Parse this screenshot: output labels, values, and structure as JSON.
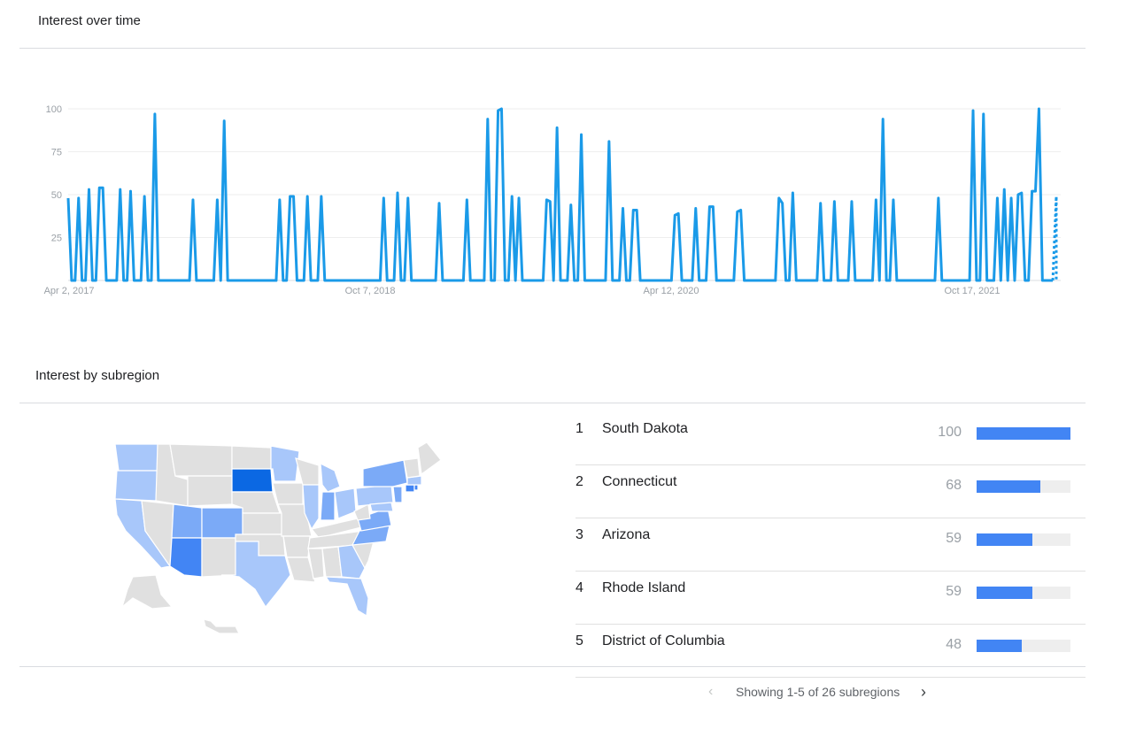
{
  "interest_over_time": {
    "title": "Interest over time"
  },
  "chart_data": {
    "type": "line",
    "title": "",
    "xlabel": "",
    "ylabel": "",
    "yticks": [
      25,
      50,
      75,
      100
    ],
    "xtick_labels": [
      "Apr 2, 2017",
      "Oct 7, 2018",
      "Apr 12, 2020",
      "Oct 17, 2021"
    ],
    "ylim": [
      0,
      100
    ],
    "grid": true,
    "color": "#1a9ae8",
    "n_points": 283,
    "series": [
      {
        "values": [
          48,
          0,
          0,
          48,
          0,
          0,
          53,
          0,
          0,
          54,
          54,
          0,
          0,
          0,
          0,
          53,
          0,
          0,
          52,
          0,
          0,
          0,
          49,
          0,
          0,
          97,
          0,
          0,
          0,
          0,
          0,
          0,
          0,
          0,
          0,
          0,
          47,
          0,
          0,
          0,
          0,
          0,
          0,
          47,
          0,
          93,
          0,
          0,
          0,
          0,
          0,
          0,
          0,
          0,
          0,
          0,
          0,
          0,
          0,
          0,
          0,
          47,
          0,
          0,
          49,
          49,
          0,
          0,
          0,
          49,
          0,
          0,
          0,
          49,
          0,
          0,
          0,
          0,
          0,
          0,
          0,
          0,
          0,
          0,
          0,
          0,
          0,
          0,
          0,
          0,
          0,
          48,
          0,
          0,
          0,
          51,
          0,
          0,
          48,
          0,
          0,
          0,
          0,
          0,
          0,
          0,
          0,
          45,
          0,
          0,
          0,
          0,
          0,
          0,
          0,
          47,
          0,
          0,
          0,
          0,
          0,
          94,
          0,
          0,
          99,
          100,
          0,
          0,
          49,
          0,
          48,
          0,
          0,
          0,
          0,
          0,
          0,
          0,
          47,
          46,
          0,
          89,
          0,
          0,
          0,
          44,
          0,
          0,
          85,
          0,
          0,
          0,
          0,
          0,
          0,
          0,
          81,
          0,
          0,
          0,
          42,
          0,
          0,
          41,
          41,
          0,
          0,
          0,
          0,
          0,
          0,
          0,
          0,
          0,
          0,
          38,
          39,
          0,
          0,
          0,
          0,
          42,
          0,
          0,
          0,
          43,
          43,
          0,
          0,
          0,
          0,
          0,
          0,
          40,
          41,
          0,
          0,
          0,
          0,
          0,
          0,
          0,
          0,
          0,
          0,
          48,
          45,
          0,
          0,
          51,
          0,
          0,
          0,
          0,
          0,
          0,
          0,
          45,
          0,
          0,
          0,
          46,
          0,
          0,
          0,
          0,
          46,
          0,
          0,
          0,
          0,
          0,
          0,
          47,
          0,
          94,
          0,
          0,
          47,
          0,
          0,
          0,
          0,
          0,
          0,
          0,
          0,
          0,
          0,
          0,
          0,
          48,
          0,
          0,
          0,
          0,
          0,
          0,
          0,
          0,
          0,
          99,
          0,
          0,
          97,
          0,
          0,
          0,
          48,
          0,
          53,
          0,
          48,
          0,
          50,
          51,
          0,
          0,
          52,
          52,
          100,
          0,
          0,
          0,
          0,
          49
        ]
      }
    ]
  },
  "interest_by_subregion": {
    "title": "Interest by subregion"
  },
  "ranking": {
    "rows": [
      {
        "rank": "1",
        "name": "South Dakota",
        "value": "100",
        "fraction": 1.0
      },
      {
        "rank": "2",
        "name": "Connecticut",
        "value": "68",
        "fraction": 0.68
      },
      {
        "rank": "3",
        "name": "Arizona",
        "value": "59",
        "fraction": 0.59
      },
      {
        "rank": "4",
        "name": "Rhode Island",
        "value": "59",
        "fraction": 0.59
      },
      {
        "rank": "5",
        "name": "District of Columbia",
        "value": "48",
        "fraction": 0.48
      }
    ]
  },
  "pager": {
    "text": "Showing 1-5 of 26 subregions",
    "prev_icon": "chevron-left-icon",
    "next_icon": "chevron-right-icon"
  },
  "map": {
    "colors": {
      "none": "#e0e0e0",
      "light": "#a8c7fa",
      "mid": "#7baaf7",
      "strong": "#4285f4",
      "max": "#0b68e3"
    }
  }
}
